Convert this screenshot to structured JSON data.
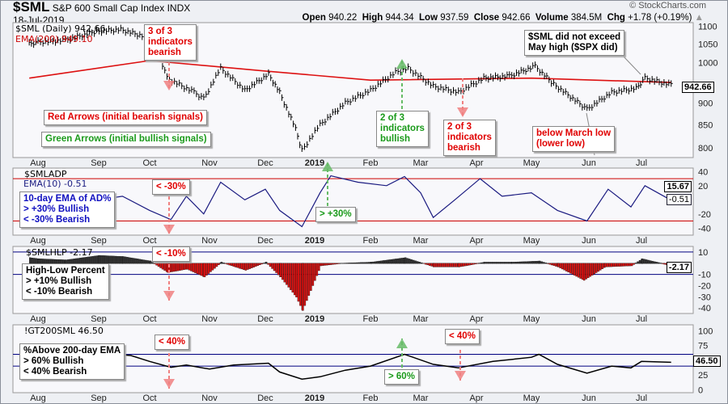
{
  "header": {
    "symbol": "$SML",
    "name": "S&P 600 Small Cap Index",
    "exchange": "INDX",
    "date": "18-Jul-2019",
    "watermark": "© StockCharts.com",
    "open_label": "Open",
    "open": "940.22",
    "high_label": "High",
    "high": "944.34",
    "low_label": "Low",
    "low": "937.59",
    "close_label": "Close",
    "close": "942.66",
    "volume_label": "Volume",
    "volume": "384.5M",
    "chg_label": "Chg",
    "chg": "+1.78 (+0.19%)"
  },
  "panels": {
    "price": {
      "title": "$SML (Daily) 942.66",
      "ema": "EMA(200) 949.10",
      "last_tag": "942.66"
    },
    "adp": {
      "title": "$SMLADP",
      "ema": "EMA(10) -0.51",
      "tag1": "15.67",
      "tag2": "-0.51"
    },
    "hlp": {
      "title": "$SMLHLP -2.17",
      "tag": "-2.17"
    },
    "gt200": {
      "title": "!GT200SML 46.50",
      "tag": "46.50"
    }
  },
  "annotations": {
    "a1": "3 of 3\nindicators\nbearish",
    "a2": "Red Arrows (initial bearish signals)",
    "a3": "Green Arrows (initial bullish signals)",
    "a4": "2 of 3\nindicators\nbullish",
    "a5": "2 of 3\nindicators\nbearish",
    "a6": "below March low\n(lower low)",
    "a7": "$SML did not exceed\nMay high ($SPX did)",
    "b1": "10-day EMA of AD%\n> +30% Bullish\n< -30% Bearish",
    "b2": "< -30%",
    "b3": "> +30%",
    "c1": "High-Low Percent\n> +10% Bullish\n< -10% Bearish",
    "c2": "< -10%",
    "d1": "%Above 200-day EMA\n> 60% Bullish\n< 40% Bearish",
    "d2": "< 40%",
    "d3": "> 60%",
    "d4": "< 40%"
  },
  "colors": {
    "price": "#000000",
    "ema200": "#dd1111",
    "adp": "#1a1a80",
    "threshold_red": "#cc0000",
    "threshold_blue": "#000080",
    "hlp_pos": "#333333",
    "hlp_neg": "#dd1111",
    "bear_arrow": "#f08080",
    "bull_arrow": "#66bb66"
  },
  "x_ticks": [
    "Aug",
    "Sep",
    "Oct",
    "Nov",
    "Dec",
    "2019",
    "Feb",
    "Mar",
    "Apr",
    "May",
    "Jun",
    "Jul"
  ],
  "chart_data": [
    {
      "type": "line",
      "name": "$SML",
      "scale": "log",
      "ylim": [
        780,
        1110
      ],
      "yticks": [
        800,
        850,
        900,
        1000,
        1050,
        1100
      ],
      "x": [
        "2018-07-20",
        "2018-08-01",
        "2018-08-15",
        "2018-08-31",
        "2018-09-14",
        "2018-09-28",
        "2018-10-03",
        "2018-10-10",
        "2018-10-24",
        "2018-10-29",
        "2018-11-07",
        "2018-11-20",
        "2018-12-03",
        "2018-12-10",
        "2018-12-20",
        "2018-12-24",
        "2019-01-04",
        "2019-01-18",
        "2019-02-01",
        "2019-02-15",
        "2019-02-22",
        "2019-03-08",
        "2019-03-22",
        "2019-04-05",
        "2019-04-19",
        "2019-05-03",
        "2019-05-13",
        "2019-05-31",
        "2019-06-14",
        "2019-06-28",
        "2019-07-03",
        "2019-07-18"
      ],
      "values": [
        1050,
        1055,
        1060,
        1085,
        1090,
        1070,
        1060,
        960,
        925,
        910,
        985,
        930,
        970,
        925,
        840,
        795,
        850,
        900,
        930,
        975,
        985,
        940,
        925,
        960,
        965,
        990,
        945,
        885,
        925,
        935,
        960,
        942.66
      ],
      "ema200": {
        "x": [
          "2018-07-20",
          "2018-10-01",
          "2018-12-01",
          "2019-02-01",
          "2019-05-01",
          "2019-07-18"
        ],
        "values": [
          960,
          1005,
          978,
          955,
          960,
          949.1
        ]
      }
    },
    {
      "type": "line",
      "name": "$SMLADP EMA(10)",
      "ylim": [
        -50,
        45
      ],
      "yticks": [
        40,
        20,
        -20,
        -40
      ],
      "thresholds": [
        30,
        -30
      ],
      "x": [
        "2018-07-20",
        "2018-08-01",
        "2018-08-15",
        "2018-09-01",
        "2018-09-15",
        "2018-10-01",
        "2018-10-12",
        "2018-10-20",
        "2018-10-29",
        "2018-11-07",
        "2018-11-20",
        "2018-12-01",
        "2018-12-10",
        "2018-12-24",
        "2019-01-04",
        "2019-01-10",
        "2019-01-25",
        "2019-02-10",
        "2019-02-20",
        "2019-03-01",
        "2019-03-08",
        "2019-03-20",
        "2019-04-03",
        "2019-04-15",
        "2019-05-01",
        "2019-05-15",
        "2019-05-31",
        "2019-06-12",
        "2019-06-25",
        "2019-07-03",
        "2019-07-18"
      ],
      "values": [
        5,
        -2,
        10,
        0,
        5,
        -15,
        -28,
        5,
        -20,
        25,
        0,
        15,
        -15,
        -38,
        10,
        34,
        25,
        20,
        33,
        10,
        -25,
        0,
        30,
        5,
        10,
        -15,
        -30,
        15,
        -10,
        20,
        -0.51
      ]
    },
    {
      "type": "bar",
      "name": "$SMLHLP",
      "ylim": [
        -45,
        15
      ],
      "yticks": [
        10,
        -10,
        -20,
        -30,
        -40
      ],
      "thresholds": [
        10,
        -10
      ],
      "x": [
        "2018-07-20",
        "2018-08-01",
        "2018-08-15",
        "2018-09-01",
        "2018-09-15",
        "2018-10-01",
        "2018-10-10",
        "2018-10-20",
        "2018-10-29",
        "2018-11-07",
        "2018-11-20",
        "2018-12-01",
        "2018-12-10",
        "2018-12-20",
        "2018-12-24",
        "2019-01-04",
        "2019-01-15",
        "2019-02-01",
        "2019-02-20",
        "2019-03-08",
        "2019-03-22",
        "2019-04-05",
        "2019-04-20",
        "2019-05-05",
        "2019-05-15",
        "2019-05-29",
        "2019-06-10",
        "2019-06-25",
        "2019-07-01",
        "2019-07-18"
      ],
      "values": [
        5,
        4,
        3,
        7,
        6,
        2,
        -8,
        -5,
        -12,
        1,
        -6,
        1,
        -12,
        -30,
        -42,
        -2,
        0,
        1,
        5,
        -3,
        -3,
        1,
        1,
        2,
        -3,
        -15,
        -3,
        -2,
        4,
        -2.17
      ]
    },
    {
      "type": "line",
      "name": "!GT200SML",
      "ylim": [
        -5,
        110
      ],
      "yticks": [
        100,
        75,
        25,
        0
      ],
      "thresholds": [
        60,
        40
      ],
      "x": [
        "2018-07-20",
        "2018-08-10",
        "2018-09-01",
        "2018-09-20",
        "2018-10-01",
        "2018-10-12",
        "2018-10-20",
        "2018-11-01",
        "2018-11-14",
        "2018-12-03",
        "2018-12-10",
        "2018-12-24",
        "2019-01-04",
        "2019-01-18",
        "2019-02-01",
        "2019-02-20",
        "2019-03-08",
        "2019-03-22",
        "2019-04-10",
        "2019-05-01",
        "2019-05-05",
        "2019-05-15",
        "2019-05-31",
        "2019-06-14",
        "2019-06-25",
        "2019-07-01",
        "2019-07-18"
      ],
      "values": [
        72,
        68,
        62,
        58,
        48,
        38,
        42,
        35,
        42,
        45,
        30,
        18,
        22,
        33,
        40,
        60,
        43,
        37,
        48,
        55,
        60,
        43,
        28,
        40,
        37,
        48,
        46.5
      ]
    }
  ]
}
